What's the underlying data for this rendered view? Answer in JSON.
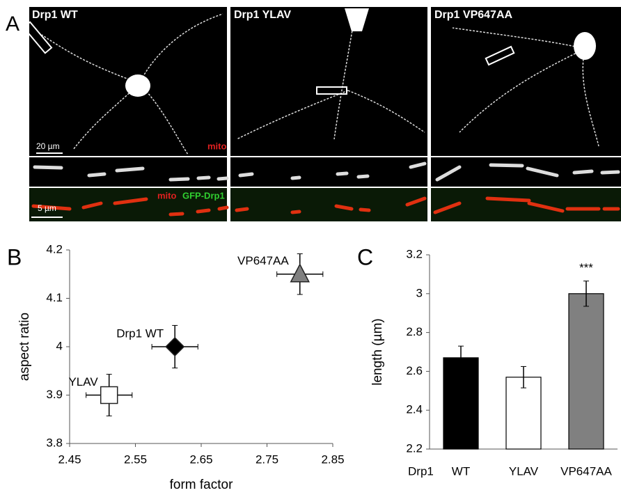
{
  "panel_a": {
    "label": "A",
    "images": [
      {
        "title": "Drp1 WT"
      },
      {
        "title": "Drp1 YLAV"
      },
      {
        "title": "Drp1 VP647AA"
      }
    ],
    "scale_bar_overview": "20 µm",
    "scale_bar_detail": "5 µm",
    "channel_overview": "mito",
    "channel_detail": [
      "mito",
      "GFP-Drp1"
    ]
  },
  "chart_data": [
    {
      "type": "scatter",
      "panel_label": "B",
      "x_label": "form factor",
      "y_label": "aspect ratio",
      "xlim": [
        2.45,
        2.85
      ],
      "xticks": [
        2.45,
        2.55,
        2.65,
        2.75,
        2.85
      ],
      "ylim": [
        3.8,
        4.2
      ],
      "yticks": [
        3.8,
        3.9,
        4,
        4.1,
        4.2
      ],
      "series": [
        {
          "name": "YLAV",
          "x": [
            2.51
          ],
          "values": [
            3.9
          ],
          "xerr": [
            0.035
          ],
          "yerr": [
            0.043
          ],
          "marker": "square",
          "color": "#ffffff"
        },
        {
          "name": "Drp1 WT",
          "x": [
            2.61
          ],
          "values": [
            4.0
          ],
          "xerr": [
            0.035
          ],
          "yerr": [
            0.044
          ],
          "marker": "diamond",
          "color": "#000000"
        },
        {
          "name": "VP647AA",
          "x": [
            2.8
          ],
          "values": [
            4.15
          ],
          "xerr": [
            0.035
          ],
          "yerr": [
            0.042
          ],
          "marker": "triangle",
          "color": "#808080"
        }
      ]
    },
    {
      "type": "bar",
      "panel_label": "C",
      "y_label": "length (µm)",
      "category_group_label": "Drp1",
      "categories": [
        "WT",
        "YLAV",
        "VP647AA"
      ],
      "values": [
        2.67,
        2.57,
        3.0
      ],
      "errors": [
        0.06,
        0.055,
        0.065
      ],
      "colors": [
        "#000000",
        "#ffffff",
        "#808080"
      ],
      "annotations": [
        null,
        null,
        "***"
      ],
      "ylim": [
        2.2,
        3.2
      ],
      "yticks": [
        2.2,
        2.4,
        2.6,
        2.8,
        3,
        3.2
      ]
    }
  ]
}
